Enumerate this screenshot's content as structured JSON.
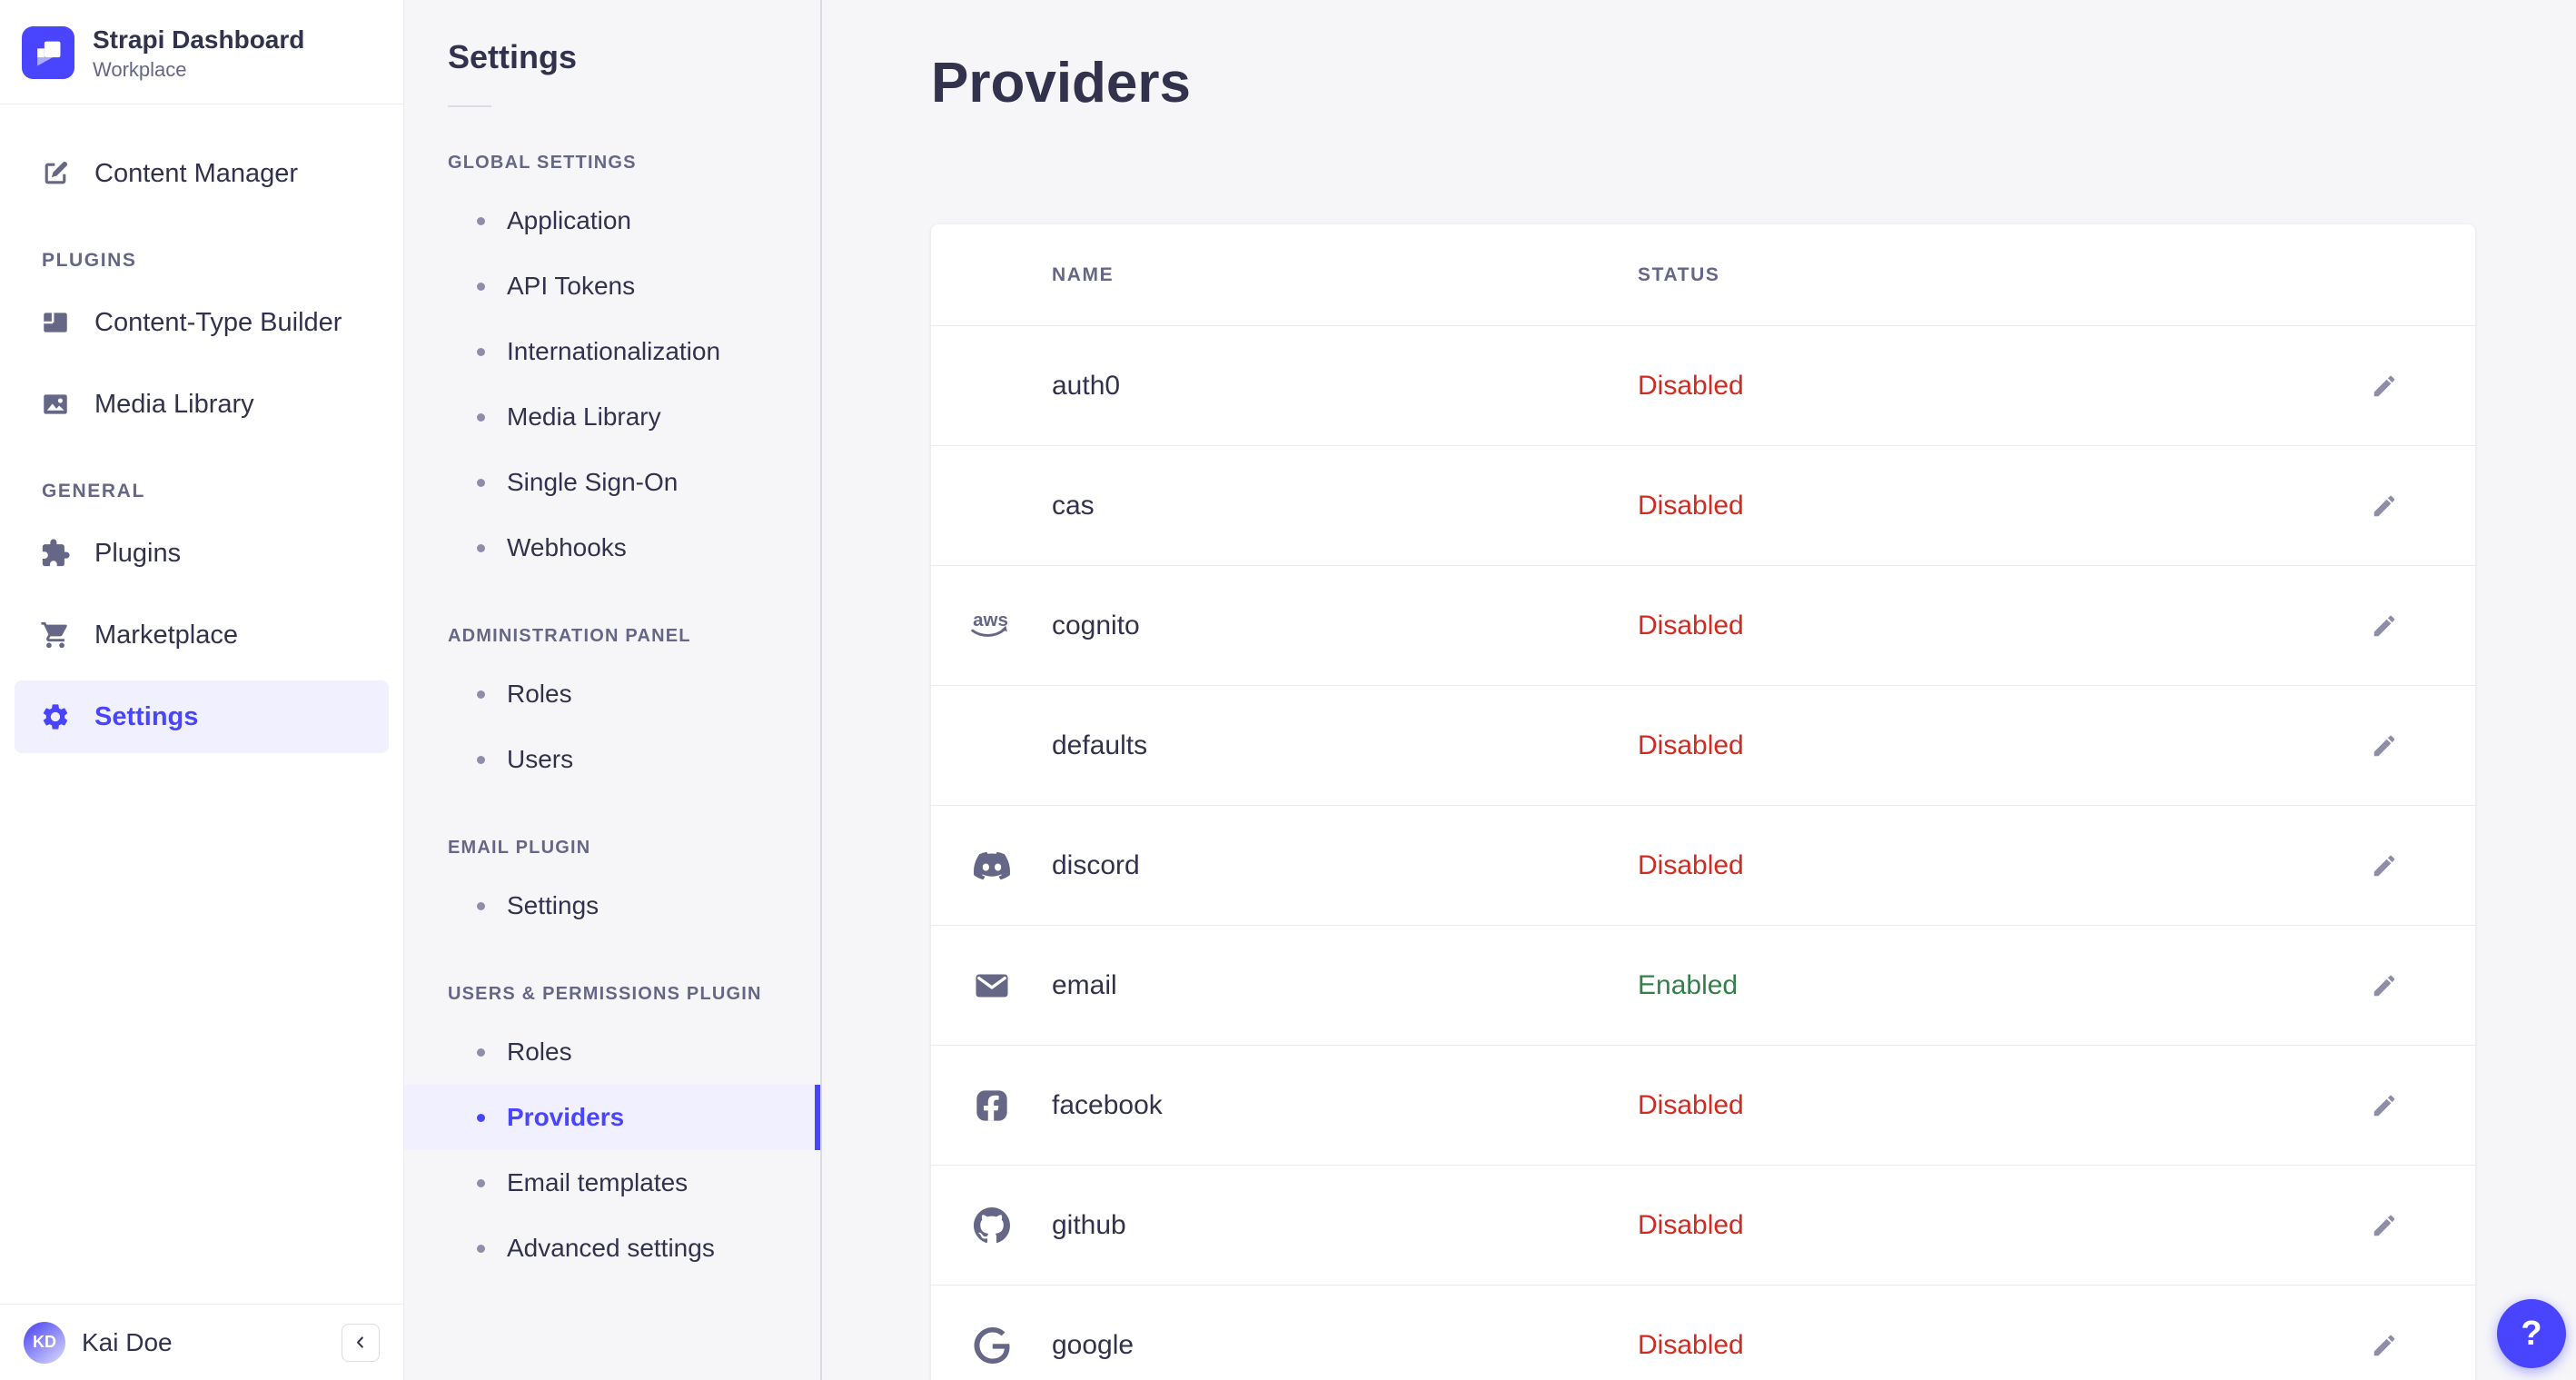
{
  "colors": {
    "accent": "#4945ff",
    "accent_bg": "#f0f0ff",
    "danger": "#d02b20",
    "success": "#328048",
    "text": "#32324d",
    "text_muted": "#666687",
    "page_bg": "#f6f6f9"
  },
  "sidebar": {
    "brand": {
      "name": "Strapi Dashboard",
      "workspace": "Workplace",
      "logo_icon": "strapi-logo-icon"
    },
    "primary_item": {
      "label": "Content Manager",
      "icon": "pen-icon"
    },
    "sections": [
      {
        "label": "PLUGINS",
        "items": [
          {
            "label": "Content-Type Builder",
            "icon": "layout-icon"
          },
          {
            "label": "Media Library",
            "icon": "image-icon"
          }
        ]
      },
      {
        "label": "GENERAL",
        "items": [
          {
            "label": "Plugins",
            "icon": "puzzle-icon"
          },
          {
            "label": "Marketplace",
            "icon": "cart-icon"
          },
          {
            "label": "Settings",
            "icon": "gear-icon",
            "active": true
          }
        ]
      }
    ],
    "user": {
      "name": "Kai Doe",
      "initials": "KD"
    }
  },
  "subnav": {
    "title": "Settings",
    "sections": [
      {
        "label": "GLOBAL SETTINGS",
        "items": [
          {
            "label": "Application"
          },
          {
            "label": "API Tokens"
          },
          {
            "label": "Internationalization"
          },
          {
            "label": "Media Library"
          },
          {
            "label": "Single Sign-On"
          },
          {
            "label": "Webhooks"
          }
        ]
      },
      {
        "label": "ADMINISTRATION PANEL",
        "items": [
          {
            "label": "Roles"
          },
          {
            "label": "Users"
          }
        ]
      },
      {
        "label": "EMAIL PLUGIN",
        "items": [
          {
            "label": "Settings"
          }
        ]
      },
      {
        "label": "USERS & PERMISSIONS PLUGIN",
        "items": [
          {
            "label": "Roles"
          },
          {
            "label": "Providers",
            "active": true
          },
          {
            "label": "Email templates"
          },
          {
            "label": "Advanced settings"
          }
        ]
      }
    ]
  },
  "main": {
    "title": "Providers",
    "table": {
      "columns": [
        "NAME",
        "STATUS"
      ],
      "rows": [
        {
          "name": "auth0",
          "status": "Disabled"
        },
        {
          "name": "cas",
          "status": "Disabled"
        },
        {
          "name": "cognito",
          "status": "Disabled",
          "icon": "aws-icon"
        },
        {
          "name": "defaults",
          "status": "Disabled"
        },
        {
          "name": "discord",
          "status": "Disabled",
          "icon": "discord-icon"
        },
        {
          "name": "email",
          "status": "Enabled",
          "icon": "envelope-icon"
        },
        {
          "name": "facebook",
          "status": "Disabled",
          "icon": "facebook-icon"
        },
        {
          "name": "github",
          "status": "Disabled",
          "icon": "github-icon"
        },
        {
          "name": "google",
          "status": "Disabled",
          "icon": "google-icon"
        }
      ]
    }
  },
  "help": {
    "label": "?"
  }
}
